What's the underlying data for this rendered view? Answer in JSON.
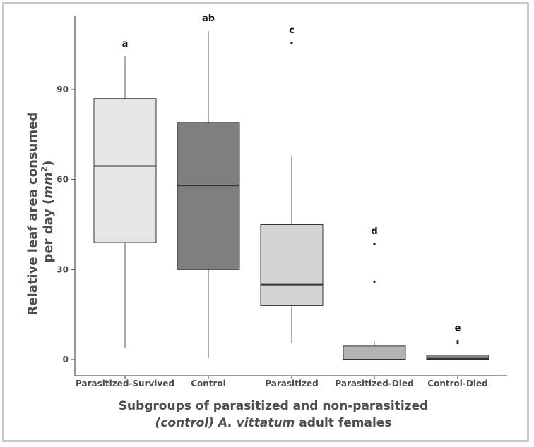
{
  "chart_data": {
    "type": "boxplot",
    "title": "",
    "ylabel_line1": "Relative leaf area consumed",
    "ylabel_line2_prefix": "per day (",
    "ylabel_unit_base": "mm",
    "ylabel_unit_exp": "2",
    "ylabel_line2_suffix": ")",
    "xlabel_line1": "Subgroups of parasitized and non-parasitized",
    "xlabel_line2_italic": "(control) A. vittatum",
    "xlabel_line2_rest": " adult females",
    "ylim": [
      -6,
      114
    ],
    "yticks": [
      0,
      30,
      60,
      90
    ],
    "grid": false,
    "categories": [
      "Parasitized-Survived",
      "Control",
      "Parasitized",
      "Parasitized-Died",
      "Control-Died"
    ],
    "boxes": [
      {
        "category": "Parasitized-Survived",
        "whisker_low": 4,
        "q1": 39,
        "median": 64.5,
        "q3": 87,
        "whisker_high": 101,
        "outliers": [],
        "letter": "a",
        "fill": "#e6e6e6"
      },
      {
        "category": "Control",
        "whisker_low": 0.5,
        "q1": 30,
        "median": 58,
        "q3": 79,
        "whisker_high": 109.5,
        "outliers": [],
        "letter": "ab",
        "fill": "#7f7f7f"
      },
      {
        "category": "Parasitized",
        "whisker_low": 5.5,
        "q1": 18,
        "median": 25,
        "q3": 45,
        "whisker_high": 68,
        "outliers": [
          105.5
        ],
        "letter": "c",
        "fill": "#d4d4d4"
      },
      {
        "category": "Parasitized-Died",
        "whisker_low": 0,
        "q1": 0,
        "median": 0,
        "q3": 4.5,
        "whisker_high": 6,
        "outliers": [
          26,
          38.5
        ],
        "letter": "d",
        "fill": "#b3b3b3"
      },
      {
        "category": "Control-Died",
        "whisker_low": 0,
        "q1": 0,
        "median": 0.3,
        "q3": 1.5,
        "whisker_high": 1.5,
        "outliers": [
          5.5,
          6.2
        ],
        "letter": "e",
        "fill": "#8c8c8c"
      }
    ],
    "colors": {
      "axis": "#333333",
      "box_stroke": "#333333",
      "text": "#4d4d4d"
    }
  }
}
